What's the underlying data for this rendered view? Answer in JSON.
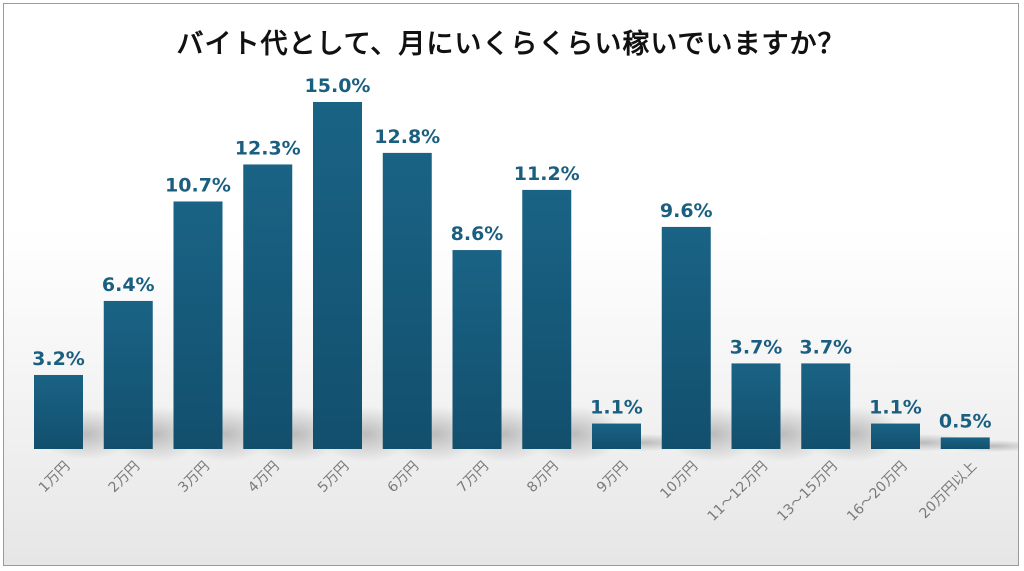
{
  "chart_data": {
    "type": "bar",
    "title": "バイト代として、月にいくらくらい稼いでいますか？",
    "categories": [
      "1万円",
      "2万円",
      "3万円",
      "4万円",
      "5万円",
      "6万円",
      "7万円",
      "8万円",
      "9万円",
      "10万円",
      "11～12万円",
      "13～15万円",
      "16～20万円",
      "20万円以上"
    ],
    "values": [
      3.2,
      6.4,
      10.7,
      12.3,
      15.0,
      12.8,
      8.6,
      11.2,
      1.1,
      9.6,
      3.7,
      3.7,
      1.1,
      0.5
    ],
    "value_labels": [
      "3.2%",
      "6.4%",
      "10.7%",
      "12.3%",
      "15.0%",
      "12.8%",
      "8.6%",
      "11.2%",
      "1.1%",
      "9.6%",
      "3.7%",
      "3.7%",
      "1.1%",
      "0.5%"
    ],
    "xlabel": "",
    "ylabel": "",
    "ylim": [
      0,
      15
    ],
    "grid": false,
    "bar_color": "#175e80",
    "label_color": "#1b5f80"
  }
}
